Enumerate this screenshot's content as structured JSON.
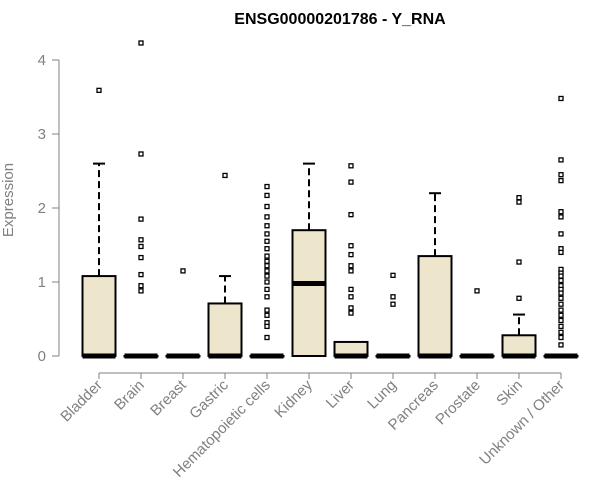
{
  "chart_data": {
    "type": "boxplot",
    "title": "ENSG00000201786 - Y_RNA",
    "xlabel": "",
    "ylabel": "Expression",
    "ylim": [
      0,
      4.3
    ],
    "yticks": [
      0,
      1,
      2,
      3,
      4
    ],
    "grid": false,
    "box_fill": "#ede6cc",
    "box_stroke": "#000000",
    "categories": [
      "Bladder",
      "Brain",
      "Breast",
      "Gastric",
      "Hematopoietic cells",
      "Kidney",
      "Liver",
      "Lung",
      "Pancreas",
      "Prostate",
      "Skin",
      "Unknown / Other"
    ],
    "boxes": [
      {
        "category": "Bladder",
        "q1": 0,
        "median": 0,
        "q3": 1.08,
        "whisker_low": 0,
        "whisker_high": 2.6,
        "outliers": [
          3.59
        ]
      },
      {
        "category": "Brain",
        "q1": 0,
        "median": 0,
        "q3": 0,
        "whisker_low": 0,
        "whisker_high": 0,
        "outliers": [
          4.23,
          2.73,
          1.85,
          1.57,
          1.48,
          1.33,
          1.1,
          0.95,
          0.88
        ]
      },
      {
        "category": "Breast",
        "q1": 0,
        "median": 0,
        "q3": 0,
        "whisker_low": 0,
        "whisker_high": 0,
        "outliers": [
          1.15
        ]
      },
      {
        "category": "Gastric",
        "q1": 0,
        "median": 0,
        "q3": 0.71,
        "whisker_low": 0,
        "whisker_high": 1.08,
        "outliers": [
          2.44
        ]
      },
      {
        "category": "Hematopoietic cells",
        "q1": 0,
        "median": 0,
        "q3": 0,
        "whisker_low": 0,
        "whisker_high": 0,
        "outliers": [
          2.29,
          2.17,
          2.02,
          1.88,
          1.76,
          1.65,
          1.55,
          1.45,
          1.35,
          1.28,
          1.22,
          1.15,
          1.08,
          1.0,
          0.9,
          0.8,
          0.62,
          0.55,
          0.45,
          0.4,
          0.25
        ]
      },
      {
        "category": "Kidney",
        "q1": 0,
        "median": 0.98,
        "q3": 1.7,
        "whisker_low": 0,
        "whisker_high": 2.6,
        "outliers": []
      },
      {
        "category": "Liver",
        "q1": 0,
        "median": 0,
        "q3": 0.19,
        "whisker_low": 0,
        "whisker_high": 0.19,
        "outliers": [
          2.57,
          2.35,
          1.91,
          1.49,
          1.37,
          1.22,
          1.15,
          0.9,
          0.8,
          0.65,
          0.58
        ]
      },
      {
        "category": "Lung",
        "q1": 0,
        "median": 0,
        "q3": 0,
        "whisker_low": 0,
        "whisker_high": 0,
        "outliers": [
          1.09,
          0.8,
          0.7
        ]
      },
      {
        "category": "Pancreas",
        "q1": 0,
        "median": 0,
        "q3": 1.35,
        "whisker_low": 0,
        "whisker_high": 2.2,
        "outliers": []
      },
      {
        "category": "Prostate",
        "q1": 0,
        "median": 0,
        "q3": 0,
        "whisker_low": 0,
        "whisker_high": 0,
        "outliers": [
          0.88
        ]
      },
      {
        "category": "Skin",
        "q1": 0,
        "median": 0,
        "q3": 0.28,
        "whisker_low": 0,
        "whisker_high": 0.56,
        "outliers": [
          2.14,
          2.08,
          1.27,
          0.78
        ]
      },
      {
        "category": "Unknown / Other",
        "q1": 0,
        "median": 0,
        "q3": 0,
        "whisker_low": 0,
        "whisker_high": 0,
        "outliers": [
          3.48,
          2.65,
          2.45,
          2.37,
          1.95,
          1.88,
          1.65,
          1.45,
          1.4,
          1.17,
          1.12,
          1.08,
          1.02,
          0.95,
          0.9,
          0.85,
          0.78,
          0.7,
          0.62,
          0.55,
          0.48,
          0.4,
          0.32,
          0.25,
          0.15
        ]
      }
    ]
  }
}
